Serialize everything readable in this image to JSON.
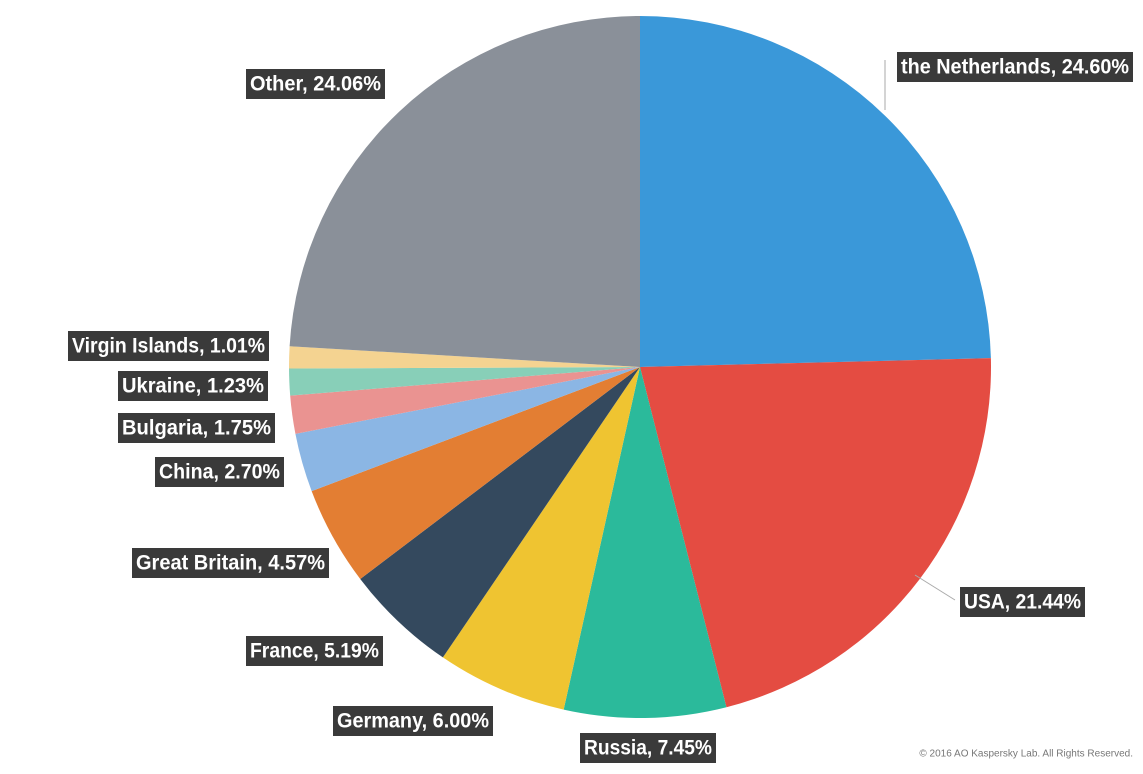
{
  "chart_data": {
    "type": "pie",
    "values": [
      24.6,
      21.44,
      7.45,
      6.0,
      5.19,
      4.57,
      2.7,
      1.75,
      1.23,
      1.01,
      24.06
    ],
    "value_labels": [
      "the Netherlands, 24.60%",
      "USA, 21.44%",
      "Russia, 7.45%",
      "Germany, 6.00%",
      "France, 5.19%",
      "Great Britain, 4.57%",
      "China, 2.70%",
      "Bulgaria, 1.75%",
      "Ukraine, 1.23%",
      "Virgin Islands, 1.01%",
      "Other, 24.06%"
    ],
    "colors": [
      "#3a98d9",
      "#e44c42",
      "#2bba9b",
      "#efc431",
      "#34495e",
      "#e37e33",
      "#8bb6e4",
      "#ea9391",
      "#88cfb8",
      "#f4d391",
      "#8a9099"
    ],
    "footer": "© 2016 AO Kaspersky Lab. All Rights Reserved."
  }
}
